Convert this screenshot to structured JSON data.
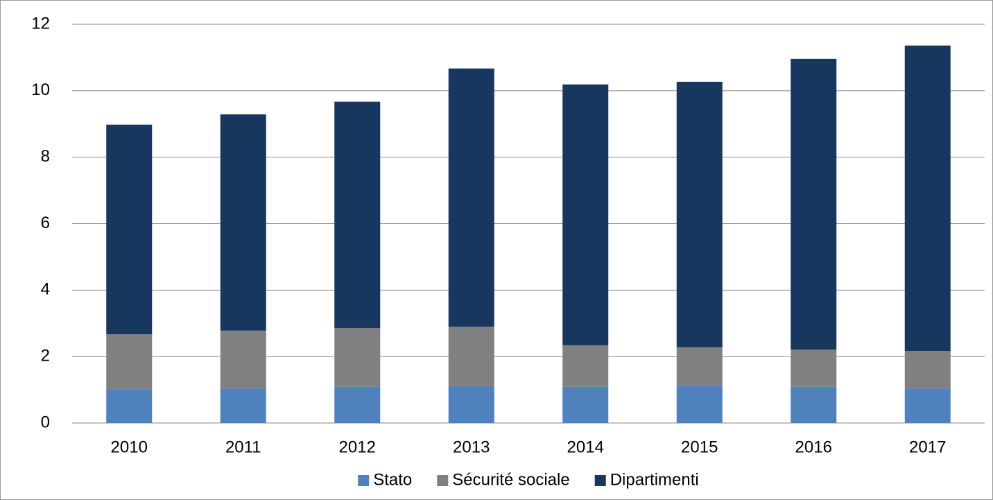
{
  "chart_data": {
    "type": "stacked_bar",
    "categories": [
      "2010",
      "2011",
      "2012",
      "2013",
      "2014",
      "2015",
      "2016",
      "2017"
    ],
    "series": [
      {
        "name": "Stato",
        "color": "#4f81bd",
        "values": [
          1.02,
          1.04,
          1.09,
          1.11,
          1.09,
          1.13,
          1.09,
          1.04
        ]
      },
      {
        "name": "Sécurité sociale",
        "color": "#808080",
        "values": [
          1.65,
          1.74,
          1.77,
          1.79,
          1.25,
          1.15,
          1.12,
          1.13
        ]
      },
      {
        "name": "Dipartimenti",
        "color": "#17375e",
        "values": [
          6.31,
          6.51,
          6.81,
          7.77,
          7.85,
          7.99,
          8.75,
          9.19
        ]
      }
    ],
    "ylim": [
      0,
      12
    ],
    "yticks": [
      0,
      2,
      4,
      6,
      8,
      10,
      12
    ],
    "grid": true,
    "legend": "bottom"
  }
}
